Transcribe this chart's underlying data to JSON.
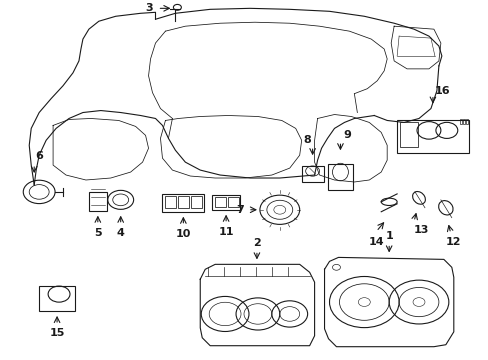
{
  "bg_color": "#ffffff",
  "line_color": "#1a1a1a",
  "lw": 0.8,
  "fig_w": 4.89,
  "fig_h": 3.6,
  "dpi": 100
}
